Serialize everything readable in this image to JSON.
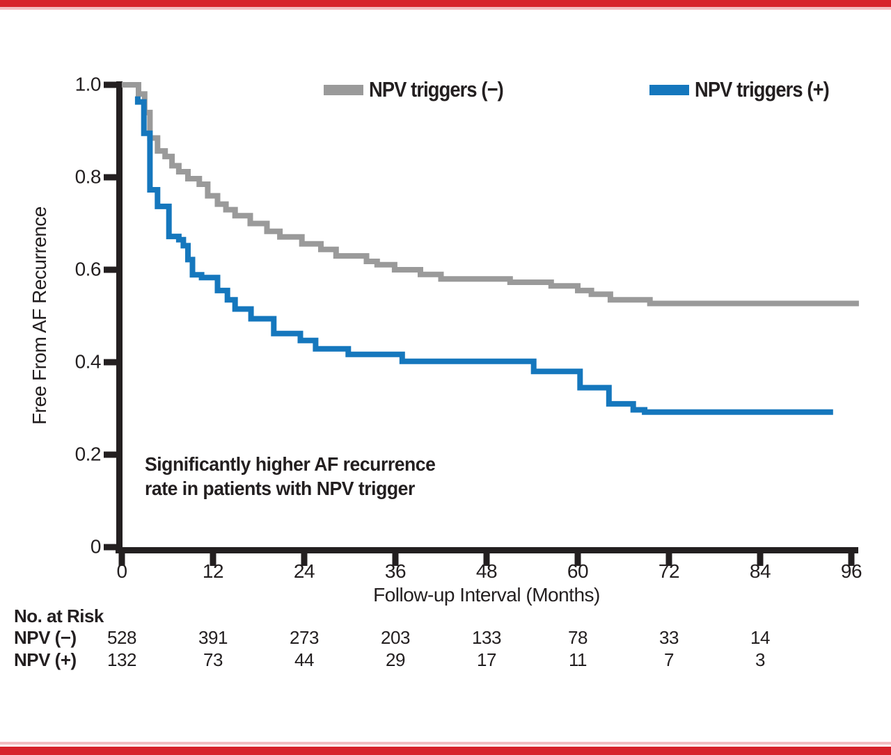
{
  "page": {
    "accent_bar_color": "#d7232b",
    "accent_bar_fade": "#f3bdc1",
    "text_color": "#231f20"
  },
  "chart_data": {
    "type": "line",
    "subtype": "kaplan-meier-step",
    "title": "",
    "xlabel": "Follow-up Interval (Months)",
    "ylabel": "Free From AF Recurrence",
    "xlim": [
      0,
      96
    ],
    "ylim": [
      0,
      1.0
    ],
    "x_ticks": [
      0,
      12,
      24,
      36,
      48,
      60,
      72,
      84,
      96
    ],
    "y_ticks": [
      "1.0",
      "0.8",
      "0.6",
      "0.4",
      "0.2",
      "0"
    ],
    "y_tick_values": [
      1.0,
      0.8,
      0.6,
      0.4,
      0.2,
      0
    ],
    "grid": false,
    "legend_position": "top",
    "annotation": {
      "line1": "Significantly higher AF recurrence",
      "line2": "rate in patients with NPV trigger"
    },
    "series": [
      {
        "name": "NPV triggers (−)",
        "color": "#9a9a9a",
        "points": [
          [
            0,
            1.0
          ],
          [
            2.2,
            1.0
          ],
          [
            2.2,
            0.98
          ],
          [
            3.0,
            0.98
          ],
          [
            3.0,
            0.94
          ],
          [
            3.7,
            0.94
          ],
          [
            3.7,
            0.885
          ],
          [
            4.7,
            0.885
          ],
          [
            4.7,
            0.857
          ],
          [
            5.7,
            0.857
          ],
          [
            5.7,
            0.845
          ],
          [
            6.6,
            0.845
          ],
          [
            6.6,
            0.825
          ],
          [
            7.5,
            0.825
          ],
          [
            7.5,
            0.812
          ],
          [
            8.7,
            0.812
          ],
          [
            8.7,
            0.797
          ],
          [
            10.2,
            0.797
          ],
          [
            10.2,
            0.785
          ],
          [
            11.3,
            0.785
          ],
          [
            11.3,
            0.76
          ],
          [
            12.6,
            0.76
          ],
          [
            12.6,
            0.742
          ],
          [
            13.7,
            0.742
          ],
          [
            13.7,
            0.73
          ],
          [
            14.9,
            0.73
          ],
          [
            14.9,
            0.717
          ],
          [
            16.9,
            0.717
          ],
          [
            16.9,
            0.7
          ],
          [
            19.1,
            0.7
          ],
          [
            19.1,
            0.683
          ],
          [
            20.8,
            0.683
          ],
          [
            20.8,
            0.671
          ],
          [
            23.7,
            0.671
          ],
          [
            23.7,
            0.656
          ],
          [
            26.2,
            0.656
          ],
          [
            26.2,
            0.644
          ],
          [
            28.2,
            0.644
          ],
          [
            28.2,
            0.63
          ],
          [
            32.2,
            0.63
          ],
          [
            32.2,
            0.618
          ],
          [
            33.6,
            0.618
          ],
          [
            33.6,
            0.611
          ],
          [
            35.9,
            0.611
          ],
          [
            35.9,
            0.6
          ],
          [
            39.3,
            0.6
          ],
          [
            39.3,
            0.59
          ],
          [
            42.0,
            0.59
          ],
          [
            42.0,
            0.58
          ],
          [
            51.1,
            0.58
          ],
          [
            51.1,
            0.573
          ],
          [
            56.5,
            0.573
          ],
          [
            56.5,
            0.565
          ],
          [
            60.0,
            0.565
          ],
          [
            60.0,
            0.555
          ],
          [
            61.8,
            0.555
          ],
          [
            61.8,
            0.547
          ],
          [
            64.3,
            0.547
          ],
          [
            64.3,
            0.535
          ],
          [
            69.5,
            0.535
          ],
          [
            69.5,
            0.527
          ],
          [
            97.0,
            0.527
          ]
        ]
      },
      {
        "name": "NPV triggers (+)",
        "color": "#1577bd",
        "points": [
          [
            2.1,
            0.975
          ],
          [
            2.1,
            0.963
          ],
          [
            2.9,
            0.963
          ],
          [
            2.9,
            0.895
          ],
          [
            3.7,
            0.895
          ],
          [
            3.7,
            0.773
          ],
          [
            4.7,
            0.773
          ],
          [
            4.7,
            0.737
          ],
          [
            6.2,
            0.737
          ],
          [
            6.2,
            0.672
          ],
          [
            7.5,
            0.672
          ],
          [
            7.5,
            0.665
          ],
          [
            8.1,
            0.665
          ],
          [
            8.1,
            0.652
          ],
          [
            8.7,
            0.652
          ],
          [
            8.7,
            0.622
          ],
          [
            9.3,
            0.622
          ],
          [
            9.3,
            0.589
          ],
          [
            10.5,
            0.589
          ],
          [
            10.5,
            0.583
          ],
          [
            12.6,
            0.583
          ],
          [
            12.6,
            0.555
          ],
          [
            13.9,
            0.555
          ],
          [
            13.9,
            0.535
          ],
          [
            14.9,
            0.535
          ],
          [
            14.9,
            0.515
          ],
          [
            17.0,
            0.515
          ],
          [
            17.0,
            0.494
          ],
          [
            20.0,
            0.494
          ],
          [
            20.0,
            0.462
          ],
          [
            23.5,
            0.462
          ],
          [
            23.5,
            0.447
          ],
          [
            25.5,
            0.447
          ],
          [
            25.5,
            0.429
          ],
          [
            29.8,
            0.429
          ],
          [
            29.8,
            0.417
          ],
          [
            36.9,
            0.417
          ],
          [
            36.9,
            0.402
          ],
          [
            54.2,
            0.402
          ],
          [
            54.2,
            0.38
          ],
          [
            60.3,
            0.38
          ],
          [
            60.3,
            0.345
          ],
          [
            64.1,
            0.345
          ],
          [
            64.1,
            0.31
          ],
          [
            67.3,
            0.31
          ],
          [
            67.3,
            0.297
          ],
          [
            68.8,
            0.297
          ],
          [
            68.8,
            0.292
          ],
          [
            93.6,
            0.292
          ]
        ]
      }
    ],
    "risk_table": {
      "heading": "No. at Risk",
      "columns_months": [
        0,
        12,
        24,
        36,
        48,
        60,
        72,
        84
      ],
      "rows": [
        {
          "label": "NPV (−)",
          "values": [
            528,
            391,
            273,
            203,
            133,
            78,
            33,
            14
          ]
        },
        {
          "label": "NPV (+)",
          "values": [
            132,
            73,
            44,
            29,
            17,
            11,
            7,
            3
          ]
        }
      ]
    }
  }
}
